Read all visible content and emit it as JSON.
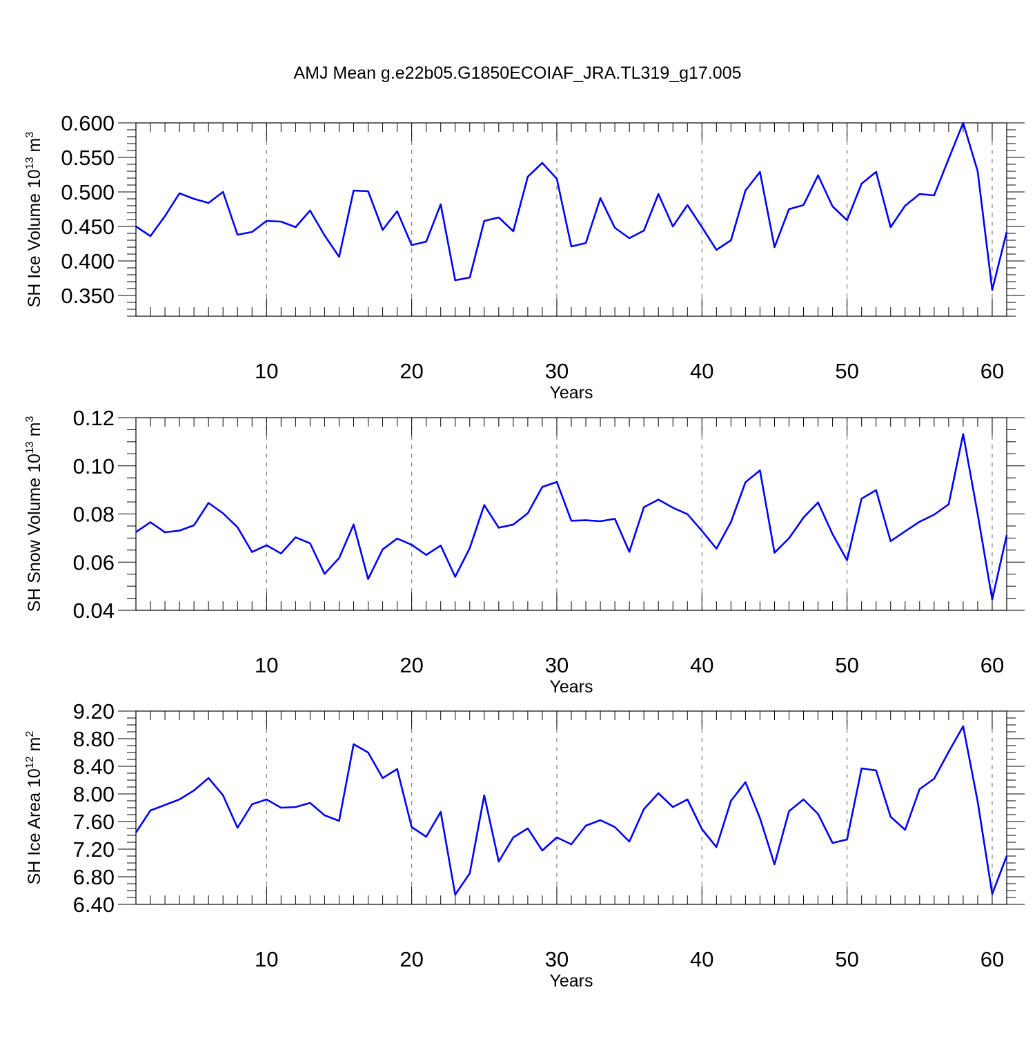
{
  "title": "AMJ Mean g.e22b05.G1850ECOIAF_JRA.TL319_g17.005",
  "series_color": "#0000ff",
  "chart_data": [
    {
      "type": "line",
      "title": "AMJ Mean g.e22b05.G1850ECOIAF_JRA.TL319_g17.005",
      "ylabel_main": "SH Ice Volume 10",
      "ylabel_exp": "13",
      "ylabel_unit": " m",
      "ylabel_unit_exp": "3",
      "xlabel": "Years",
      "xlim": [
        1,
        61
      ],
      "ylim": [
        0.32,
        0.6
      ],
      "xticks": [
        10,
        20,
        30,
        40,
        50,
        60
      ],
      "yticks": [
        0.35,
        0.4,
        0.45,
        0.5,
        0.55,
        0.6
      ],
      "ytick_labels": [
        "0.350",
        "0.400",
        "0.450",
        "0.500",
        "0.550",
        "0.600"
      ],
      "x_grid_dashed": true,
      "x": [
        1,
        2,
        3,
        4,
        5,
        6,
        7,
        8,
        9,
        10,
        11,
        12,
        13,
        14,
        15,
        16,
        17,
        18,
        19,
        20,
        21,
        22,
        23,
        24,
        25,
        26,
        27,
        28,
        29,
        30,
        31,
        32,
        33,
        34,
        35,
        36,
        37,
        38,
        39,
        40,
        41,
        42,
        43,
        44,
        45,
        46,
        47,
        48,
        49,
        50,
        51,
        52,
        53,
        54,
        55,
        56,
        57,
        58,
        59,
        60,
        61
      ],
      "values": [
        0.45,
        0.436,
        0.465,
        0.498,
        0.49,
        0.484,
        0.5,
        0.438,
        0.442,
        0.458,
        0.457,
        0.449,
        0.473,
        0.437,
        0.406,
        0.502,
        0.501,
        0.445,
        0.472,
        0.423,
        0.428,
        0.482,
        0.372,
        0.376,
        0.458,
        0.463,
        0.443,
        0.522,
        0.542,
        0.519,
        0.421,
        0.426,
        0.491,
        0.448,
        0.433,
        0.444,
        0.497,
        0.45,
        0.481,
        0.449,
        0.416,
        0.43,
        0.502,
        0.529,
        0.42,
        0.475,
        0.481,
        0.524,
        0.479,
        0.459,
        0.512,
        0.529,
        0.449,
        0.48,
        0.497,
        0.495,
        0.548,
        0.6,
        0.53,
        0.358,
        0.442
      ]
    },
    {
      "type": "line",
      "ylabel_main": "SH Snow Volume 10",
      "ylabel_exp": "13",
      "ylabel_unit": " m",
      "ylabel_unit_exp": "3",
      "xlabel": "Years",
      "xlim": [
        1,
        61
      ],
      "ylim": [
        0.04,
        0.12
      ],
      "xticks": [
        10,
        20,
        30,
        40,
        50,
        60
      ],
      "yticks": [
        0.04,
        0.06,
        0.08,
        0.1,
        0.12
      ],
      "ytick_labels": [
        "0.04",
        "0.06",
        "0.08",
        "0.10",
        "0.12"
      ],
      "x_grid_dashed": true,
      "x": [
        1,
        2,
        3,
        4,
        5,
        6,
        7,
        8,
        9,
        10,
        11,
        12,
        13,
        14,
        15,
        16,
        17,
        18,
        19,
        20,
        21,
        22,
        23,
        24,
        25,
        26,
        27,
        28,
        29,
        30,
        31,
        32,
        33,
        34,
        35,
        36,
        37,
        38,
        39,
        40,
        41,
        42,
        43,
        44,
        45,
        46,
        47,
        48,
        49,
        50,
        51,
        52,
        53,
        54,
        55,
        56,
        57,
        58,
        59,
        60,
        61
      ],
      "values": [
        0.0725,
        0.0766,
        0.0724,
        0.0731,
        0.0753,
        0.0846,
        0.0803,
        0.0745,
        0.0642,
        0.067,
        0.0636,
        0.0703,
        0.0678,
        0.0551,
        0.0617,
        0.0756,
        0.053,
        0.0653,
        0.0698,
        0.0672,
        0.063,
        0.0669,
        0.0539,
        0.0658,
        0.0837,
        0.0743,
        0.0756,
        0.0803,
        0.0912,
        0.0933,
        0.0772,
        0.0774,
        0.077,
        0.078,
        0.0643,
        0.0828,
        0.086,
        0.0826,
        0.0799,
        0.073,
        0.0656,
        0.0767,
        0.0932,
        0.0981,
        0.0639,
        0.0699,
        0.0785,
        0.0848,
        0.0716,
        0.0608,
        0.0864,
        0.0899,
        0.0687,
        0.0728,
        0.0768,
        0.0797,
        0.084,
        0.1132,
        0.08,
        0.0445,
        0.0712
      ]
    },
    {
      "type": "line",
      "ylabel_main": "SH Ice Area 10",
      "ylabel_exp": "12",
      "ylabel_unit": " m",
      "ylabel_unit_exp": "2",
      "xlabel": "Years",
      "xlim": [
        1,
        61
      ],
      "ylim": [
        6.4,
        9.2
      ],
      "xticks": [
        10,
        20,
        30,
        40,
        50,
        60
      ],
      "yticks": [
        6.4,
        6.8,
        7.2,
        7.6,
        8.0,
        8.4,
        8.8,
        9.2
      ],
      "ytick_labels": [
        "6.40",
        "6.80",
        "7.20",
        "7.60",
        "8.00",
        "8.40",
        "8.80",
        "9.20"
      ],
      "x_grid_dashed": true,
      "x": [
        1,
        2,
        3,
        4,
        5,
        6,
        7,
        8,
        9,
        10,
        11,
        12,
        13,
        14,
        15,
        16,
        17,
        18,
        19,
        20,
        21,
        22,
        23,
        24,
        25,
        26,
        27,
        28,
        29,
        30,
        31,
        32,
        33,
        34,
        35,
        36,
        37,
        38,
        39,
        40,
        41,
        42,
        43,
        44,
        45,
        46,
        47,
        48,
        49,
        50,
        51,
        52,
        53,
        54,
        55,
        56,
        57,
        58,
        59,
        60,
        61
      ],
      "values": [
        7.44,
        7.76,
        7.84,
        7.92,
        8.05,
        8.23,
        7.98,
        7.51,
        7.85,
        7.92,
        7.8,
        7.81,
        7.87,
        7.69,
        7.61,
        8.72,
        8.6,
        8.23,
        8.36,
        7.52,
        7.38,
        7.74,
        6.54,
        6.85,
        7.98,
        7.02,
        7.37,
        7.5,
        7.18,
        7.37,
        7.27,
        7.54,
        7.62,
        7.52,
        7.31,
        7.78,
        8.01,
        7.81,
        7.92,
        7.49,
        7.23,
        7.9,
        8.17,
        7.65,
        6.98,
        7.75,
        7.92,
        7.71,
        7.29,
        7.34,
        8.37,
        8.34,
        7.67,
        7.48,
        8.07,
        8.22,
        8.61,
        8.98,
        7.89,
        6.55,
        7.1
      ]
    }
  ]
}
